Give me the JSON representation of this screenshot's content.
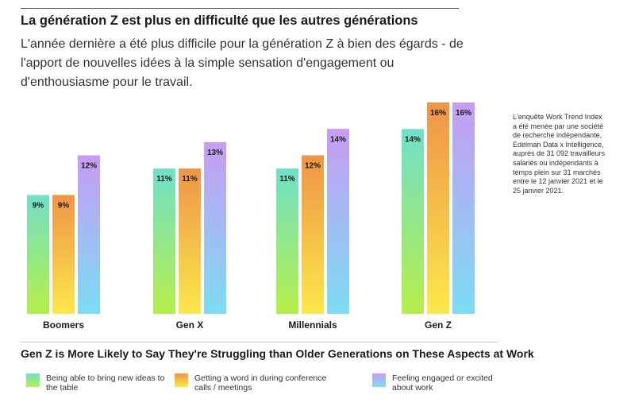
{
  "header": {
    "title": "La génération Z est plus en difficulté que les autres générations",
    "subtitle": "L'année dernière a été plus difficile pour la génération Z à bien des égards - de l'apport de nouvelles idées à la simple sensation d'engagement ou d'enthousiasme pour le travail."
  },
  "note": "L'enquête Work Trend Index a été menée par une société de recherche indépendante, Edelman Data x Intelligence, auprès de 31 092 travailleurs salariés ou indépendants à temps plein sur 31 marchés entre le 12 janvier 2021 et le 25 janvier 2021.",
  "footer": {
    "title": "Gen Z is More Likely to Say They're Struggling than Older Generations on These Aspects at  Work"
  },
  "legend": [
    {
      "label": "Being able to bring new ideas to the table",
      "gradient": [
        "#6fe0c8",
        "#b6ef4a"
      ]
    },
    {
      "label": "Getting a word in during conference calls / meetings",
      "gradient": [
        "#ef9448",
        "#fce84a"
      ]
    },
    {
      "label": "Feeling engaged or excited about work",
      "gradient": [
        "#c79cf3",
        "#7ddcf3"
      ]
    }
  ],
  "chart_data": {
    "type": "bar",
    "categories": [
      "Boomers",
      "Gen X",
      "Millennials",
      "Gen Z"
    ],
    "series": [
      {
        "values": [
          9,
          11,
          11,
          14
        ],
        "labels": [
          "9%",
          "11%",
          "11%",
          "14%"
        ],
        "gradient": [
          "#6fe0c8",
          "#b6ef4a"
        ]
      },
      {
        "values": [
          9,
          11,
          12,
          16
        ],
        "labels": [
          "9%",
          "11%",
          "12%",
          "16%"
        ],
        "gradient": [
          "#ef9448",
          "#fce84a"
        ]
      },
      {
        "values": [
          12,
          13,
          14,
          16
        ],
        "labels": [
          "12%",
          "13%",
          "14%",
          "16%"
        ],
        "gradient": [
          "#c79cf3",
          "#7ddcf3"
        ]
      }
    ],
    "ylim": [
      0,
      16
    ],
    "grid": false
  }
}
